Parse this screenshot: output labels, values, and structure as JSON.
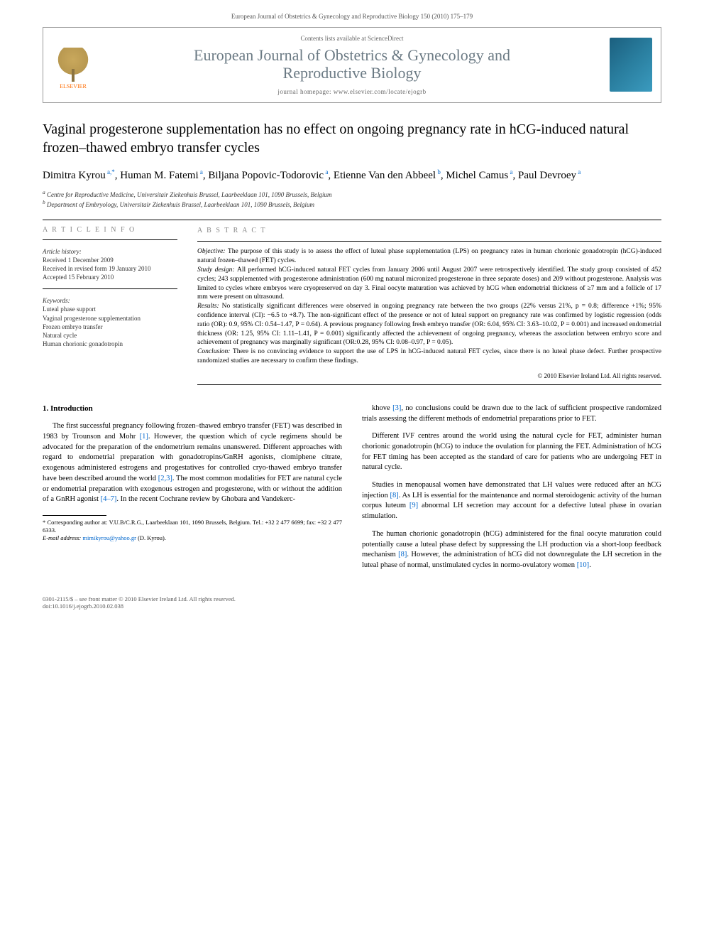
{
  "header": {
    "running_head": "European Journal of Obstetrics & Gynecology and Reproductive Biology 150 (2010) 175–179"
  },
  "journal_box": {
    "elsevier": "ELSEVIER",
    "contents_line": "Contents lists available at ScienceDirect",
    "journal_name_line1": "European Journal of Obstetrics & Gynecology and",
    "journal_name_line2": "Reproductive Biology",
    "homepage": "journal homepage: www.elsevier.com/locate/ejogrb"
  },
  "article": {
    "title": "Vaginal progesterone supplementation has no effect on ongoing pregnancy rate in hCG-induced natural frozen–thawed embryo transfer cycles",
    "authors_html": "Dimitra Kyrou|a,*|, Human M. Fatemi|a|, Biljana Popovic-Todorovic|a|, Etienne Van den Abbeel|b|, Michel Camus|a|, Paul Devroey|a|",
    "authors": [
      {
        "name": "Dimitra Kyrou",
        "sup": "a,*"
      },
      {
        "name": "Human M. Fatemi",
        "sup": "a"
      },
      {
        "name": "Biljana Popovic-Todorovic",
        "sup": "a"
      },
      {
        "name": "Etienne Van den Abbeel",
        "sup": "b"
      },
      {
        "name": "Michel Camus",
        "sup": "a"
      },
      {
        "name": "Paul Devroey",
        "sup": "a"
      }
    ],
    "affiliations": [
      "a Centre for Reproductive Medicine, Universitair Ziekenhuis Brussel, Laarbeeklaan 101, 1090 Brussels, Belgium",
      "b Department of Embryology, Universitair Ziekenhuis Brussel, Laarbeeklaan 101, 1090 Brussels, Belgium"
    ]
  },
  "article_info": {
    "heading": "A R T I C L E   I N F O",
    "history_title": "Article history:",
    "history": [
      "Received 1 December 2009",
      "Received in revised form 19 January 2010",
      "Accepted 15 February 2010"
    ],
    "keywords_title": "Keywords:",
    "keywords": [
      "Luteal phase support",
      "Vaginal progesterone supplementation",
      "Frozen embryo transfer",
      "Natural cycle",
      "Human chorionic gonadotropin"
    ]
  },
  "abstract": {
    "heading": "A B S T R A C T",
    "objective_label": "Objective: ",
    "objective": "The purpose of this study is to assess the effect of luteal phase supplementation (LPS) on pregnancy rates in human chorionic gonadotropin (hCG)-induced natural frozen–thawed (FET) cycles.",
    "design_label": "Study design: ",
    "design": "All performed hCG-induced natural FET cycles from January 2006 until August 2007 were retrospectively identified. The study group consisted of 452 cycles; 243 supplemented with progesterone administration (600 mg natural micronized progesterone in three separate doses) and 209 without progesterone. Analysis was limited to cycles where embryos were cryopreserved on day 3. Final oocyte maturation was achieved by hCG when endometrial thickness of ≥7 mm and a follicle of 17 mm were present on ultrasound.",
    "results_label": "Results: ",
    "results": "No statistically significant differences were observed in ongoing pregnancy rate between the two groups (22% versus 21%, p = 0.8; difference +1%; 95% confidence interval (CI): −6.5 to +8.7). The non-significant effect of the presence or not of luteal support on pregnancy rate was confirmed by logistic regression (odds ratio (OR): 0.9, 95% CI: 0.54–1.47, P = 0.64). A previous pregnancy following fresh embryo transfer (OR: 6.04, 95% CI: 3.63–10.02, P = 0.001) and increased endometrial thickness (OR: 1.25, 95% CI: 1.11–1.41, P = 0.001) significantly affected the achievement of ongoing pregnancy, whereas the association between embryo score and achievement of pregnancy was marginally significant (OR:0.28, 95% CI: 0.08–0.97, P = 0.05).",
    "conclusion_label": "Conclusion: ",
    "conclusion": "There is no convincing evidence to support the use of LPS in hCG-induced natural FET cycles, since there is no luteal phase defect. Further prospective randomized studies are necessary to confirm these findings.",
    "copyright": "© 2010 Elsevier Ireland Ltd. All rights reserved."
  },
  "body": {
    "section_number": "1.",
    "section_title": "Introduction",
    "col1_paras": [
      "The first successful pregnancy following frozen–thawed embryo transfer (FET) was described in 1983 by Trounson and Mohr [1]. However, the question which of cycle regimens should be advocated for the preparation of the endometrium remains unanswered. Different approaches with regard to endometrial preparation with gonadotropins/GnRH agonists, clomiphene citrate, exogenous administered estrogens and progestatives for controlled cryo-thawed embryo transfer have been described around the world [2,3]. The most common modalities for FET are natural cycle or endometrial preparation with exogenous estrogen and progesterone, with or without the addition of a GnRH agonist [4–7]. In the recent Cochrane review by Ghobara and Vandekerc-"
    ],
    "col2_paras": [
      "khove [3], no conclusions could be drawn due to the lack of sufficient prospective randomized trials assessing the different methods of endometrial preparations prior to FET.",
      "Different IVF centres around the world using the natural cycle for FET, administer human chorionic gonadotropin (hCG) to induce the ovulation for planning the FET. Administration of hCG for FET timing has been accepted as the standard of care for patients who are undergoing FET in natural cycle.",
      "Studies in menopausal women have demonstrated that LH values were reduced after an hCG injection [8]. As LH is essential for the maintenance and normal steroidogenic activity of the human corpus luteum [9] abnormal LH secretion may account for a defective luteal phase in ovarian stimulation.",
      "The human chorionic gonadotropin (hCG) administered for the final oocyte maturation could potentially cause a luteal phase defect by suppressing the LH production via a short-loop feedback mechanism [8]. However, the administration of hCG did not downregulate the LH secretion in the luteal phase of normal, unstimulated cycles in normo-ovulatory women [10]."
    ]
  },
  "footnotes": {
    "corresponding": "* Corresponding author at: V.U.B/C.R.G., Laarbeeklaan 101, 1090 Brussels, Belgium. Tel.: +32 2 477 6699; fax: +32 2 477 6333.",
    "email_label": "E-mail address: ",
    "email": "mimikyrou@yahoo.gr",
    "email_who": " (D. Kyrou)."
  },
  "footer": {
    "left_line1": "0301-2115/$ – see front matter © 2010 Elsevier Ireland Ltd. All rights reserved.",
    "left_line2": "doi:10.1016/j.ejogrb.2010.02.038"
  },
  "colors": {
    "link": "#0066cc",
    "journal_name": "#6b7a84",
    "elsevier": "#ff6b00"
  }
}
